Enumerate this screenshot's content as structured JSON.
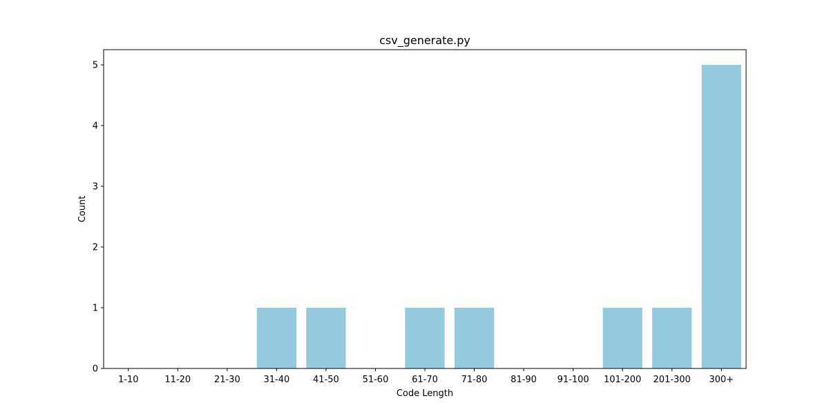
{
  "chart_data": {
    "type": "bar",
    "title": "csv_generate.py",
    "xlabel": "Code Length",
    "ylabel": "Count",
    "categories": [
      "1-10",
      "11-20",
      "21-30",
      "31-40",
      "41-50",
      "51-60",
      "61-70",
      "71-80",
      "81-90",
      "91-100",
      "101-200",
      "201-300",
      "300+"
    ],
    "values": [
      0,
      0,
      0,
      1,
      1,
      0,
      1,
      1,
      0,
      0,
      1,
      1,
      5
    ],
    "ylim": [
      0,
      5.25
    ],
    "yticks": [
      "0",
      "1",
      "2",
      "3",
      "4",
      "5"
    ],
    "bar_color": "#95c9df",
    "grid": false,
    "legend": "none"
  }
}
